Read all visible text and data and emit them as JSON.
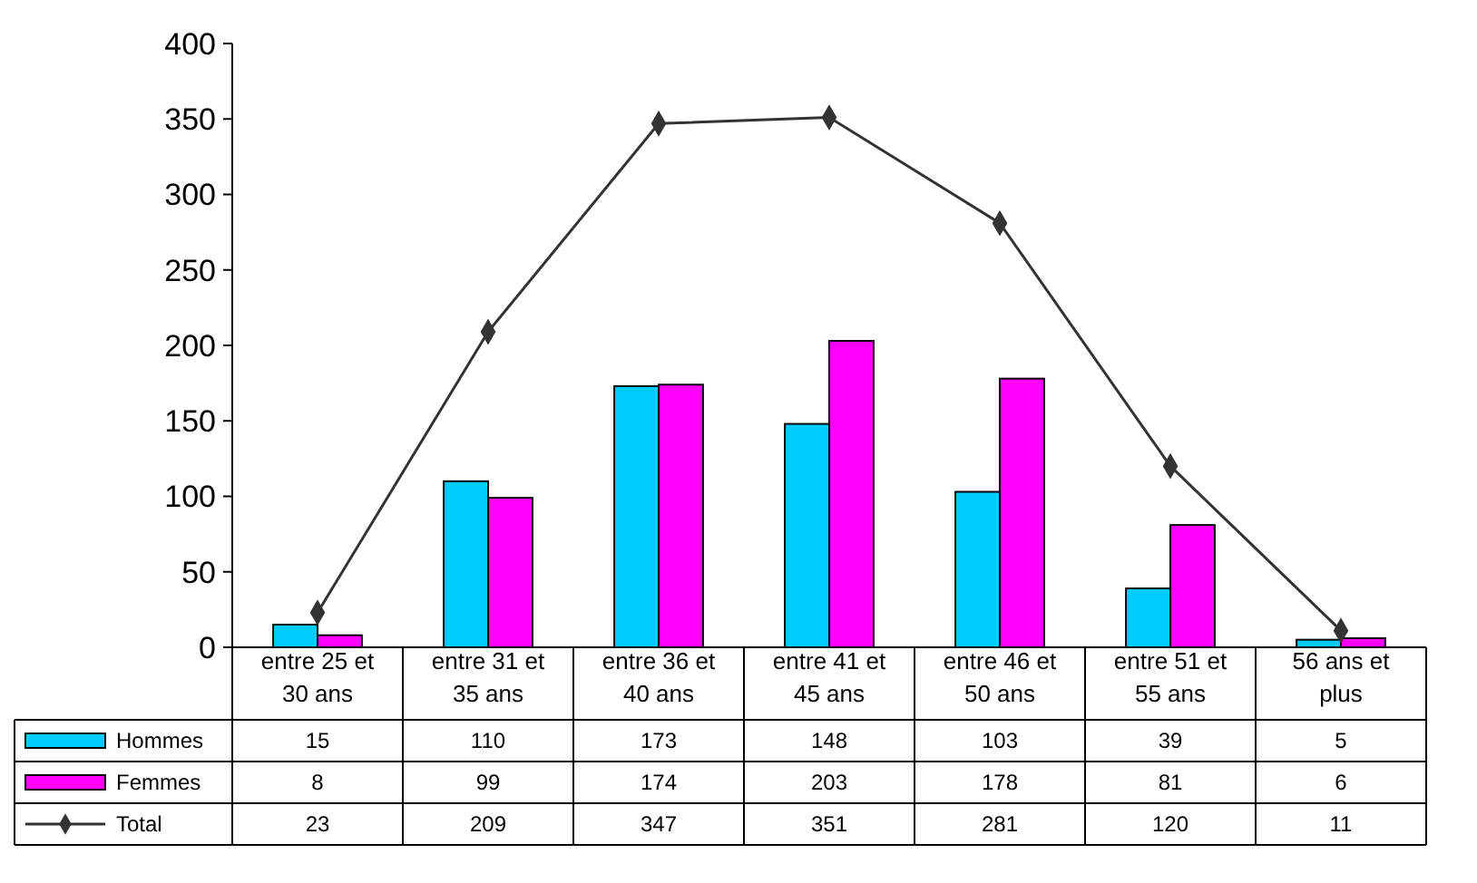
{
  "chart_data": {
    "type": "bar",
    "categories": [
      "entre 25 et 30 ans",
      "entre 31 et 35 ans",
      "entre 36 et 40 ans",
      "entre 41 et 45 ans",
      "entre 46 et 50 ans",
      "entre 51 et 55 ans",
      "56 ans et plus"
    ],
    "series": [
      {
        "name": "Hommes",
        "color": "#00ccff",
        "values": [
          15,
          110,
          173,
          148,
          103,
          39,
          5
        ]
      },
      {
        "name": "Femmes",
        "color": "#ff00ff",
        "values": [
          8,
          99,
          174,
          203,
          178,
          81,
          6
        ]
      },
      {
        "name": "Total",
        "type": "line",
        "color": "#333333",
        "marker": "diamond",
        "values": [
          23,
          209,
          347,
          351,
          281,
          120,
          11
        ]
      }
    ],
    "ylim": [
      0,
      400
    ],
    "yticks": [
      0,
      50,
      100,
      150,
      200,
      250,
      300,
      350,
      400
    ],
    "data_labels": true,
    "legend": "bottom left"
  }
}
